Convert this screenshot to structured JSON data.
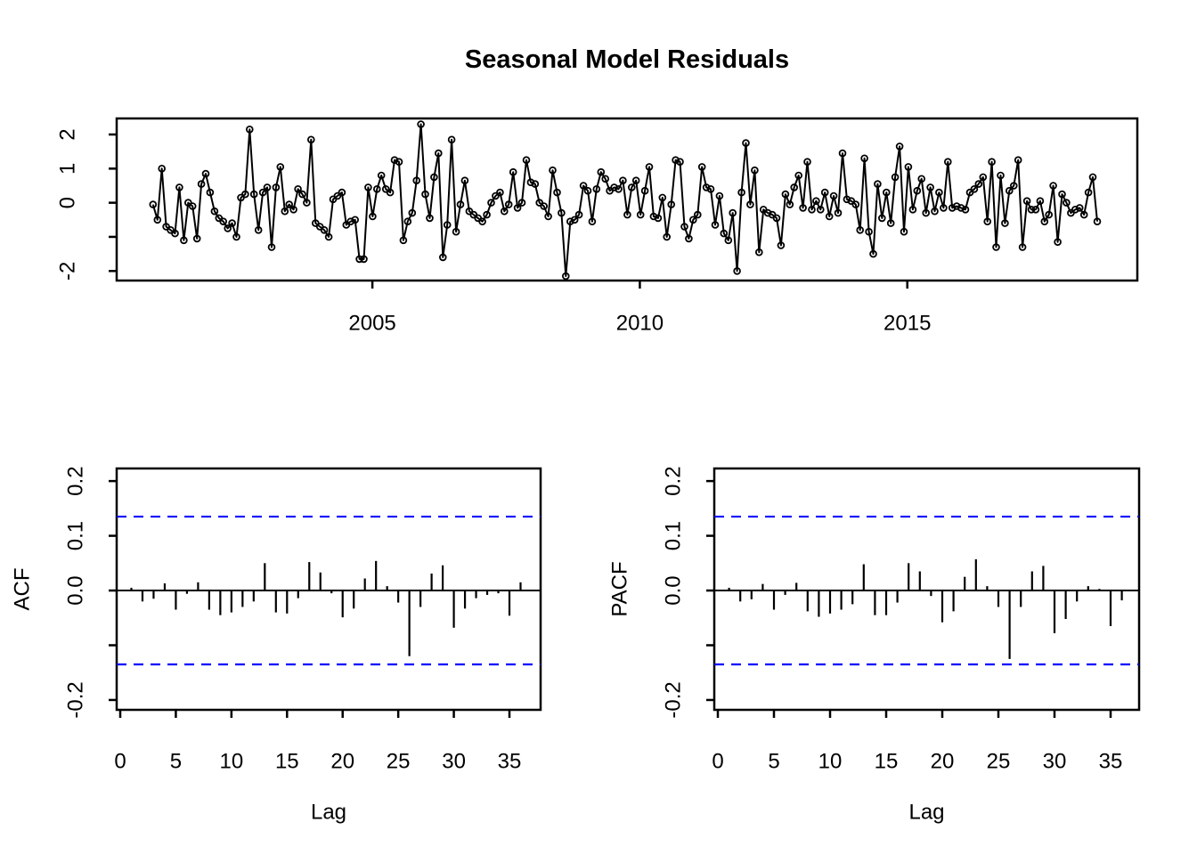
{
  "colors": {
    "foreground": "#000000",
    "confidence_line": "#0000FF",
    "background": "#FFFFFF"
  },
  "chart_data": [
    {
      "id": "residuals",
      "type": "line",
      "panel": "top",
      "title": "Seasonal Model Residuals",
      "marker": "open-circle",
      "x_axis": {
        "ticks": [
          2005,
          2010,
          2015
        ],
        "tick_labels": [
          "2005",
          "2010",
          "2015"
        ],
        "lim": [
          2000.22,
          2019.3
        ]
      },
      "y_axis": {
        "ticks": [
          2,
          1,
          0,
          -1,
          -2
        ],
        "tick_labels": [
          "2",
          "1",
          "0",
          "",
          "-2"
        ],
        "lim": [
          -2.28,
          2.47
        ]
      },
      "x_start": 2000.9,
      "x_end": 2018.55,
      "values": [
        -0.05,
        -0.5,
        1.0,
        -0.7,
        -0.8,
        -0.9,
        0.45,
        -1.1,
        0.0,
        -0.1,
        -1.05,
        0.55,
        0.85,
        0.3,
        -0.25,
        -0.45,
        -0.55,
        -0.75,
        -0.6,
        -1.0,
        0.15,
        0.25,
        2.15,
        0.25,
        -0.8,
        0.3,
        0.45,
        -1.3,
        0.45,
        1.05,
        -0.25,
        -0.05,
        -0.2,
        0.4,
        0.25,
        0.0,
        1.85,
        -0.6,
        -0.7,
        -0.8,
        -1.0,
        0.1,
        0.2,
        0.3,
        -0.65,
        -0.55,
        -0.5,
        -1.65,
        -1.65,
        0.45,
        -0.4,
        0.4,
        0.8,
        0.4,
        0.3,
        1.25,
        1.2,
        -1.1,
        -0.55,
        -0.3,
        0.65,
        2.3,
        0.25,
        -0.45,
        0.75,
        1.45,
        -1.6,
        -0.65,
        1.85,
        -0.85,
        -0.05,
        0.65,
        -0.25,
        -0.35,
        -0.45,
        -0.55,
        -0.35,
        0.0,
        0.2,
        0.3,
        -0.25,
        -0.05,
        0.9,
        -0.15,
        0.0,
        1.25,
        0.6,
        0.55,
        0.0,
        -0.1,
        -0.4,
        0.95,
        0.3,
        -0.3,
        -2.15,
        -0.55,
        -0.5,
        -0.35,
        0.5,
        0.35,
        -0.55,
        0.4,
        0.9,
        0.7,
        0.35,
        0.45,
        0.4,
        0.65,
        -0.35,
        0.45,
        0.65,
        -0.35,
        0.35,
        1.05,
        -0.4,
        -0.45,
        0.15,
        -1.0,
        -0.05,
        1.25,
        1.2,
        -0.7,
        -1.05,
        -0.5,
        -0.35,
        1.05,
        0.45,
        0.4,
        -0.65,
        0.2,
        -0.9,
        -1.1,
        -0.3,
        -2.0,
        0.3,
        1.75,
        -0.05,
        0.95,
        -1.45,
        -0.2,
        -0.3,
        -0.35,
        -0.45,
        -1.25,
        0.25,
        -0.05,
        0.45,
        0.8,
        -0.15,
        1.2,
        -0.2,
        0.05,
        -0.2,
        0.3,
        -0.4,
        0.2,
        -0.3,
        1.45,
        0.1,
        0.05,
        -0.05,
        -0.8,
        1.3,
        -0.85,
        -1.5,
        0.55,
        -0.45,
        0.3,
        -0.6,
        0.75,
        1.65,
        -0.85,
        1.05,
        -0.2,
        0.35,
        0.7,
        -0.3,
        0.45,
        -0.25,
        0.3,
        -0.15,
        1.2,
        -0.15,
        -0.1,
        -0.15,
        -0.2,
        0.3,
        0.4,
        0.55,
        0.75,
        -0.55,
        1.2,
        -1.3,
        0.8,
        -0.6,
        0.35,
        0.5,
        1.25,
        -1.3,
        0.05,
        -0.2,
        -0.2,
        0.05,
        -0.55,
        -0.35,
        0.5,
        -1.15,
        0.25,
        0.0,
        -0.3,
        -0.2,
        -0.15,
        -0.35,
        0.3,
        0.75,
        -0.55
      ]
    },
    {
      "id": "acf",
      "type": "bar",
      "panel": "bottom-left",
      "ylabel": "ACF",
      "xlabel": "Lag",
      "first_lag": 1,
      "confidence": 0.135,
      "x_axis": {
        "ticks": [
          0,
          5,
          10,
          15,
          20,
          25,
          30,
          35
        ],
        "tick_labels": [
          "0",
          "5",
          "10",
          "15",
          "20",
          "25",
          "30",
          "35"
        ],
        "lim": [
          -0.32,
          37.8
        ]
      },
      "y_axis": {
        "ticks": [
          0.2,
          0.1,
          0.0,
          -0.1,
          -0.2
        ],
        "tick_labels": [
          "0.2",
          "0.1",
          "0.0",
          "",
          "-0.2"
        ],
        "lim": [
          -0.218,
          0.223
        ]
      },
      "values": [
        0.005,
        -0.02,
        -0.015,
        0.013,
        -0.035,
        -0.006,
        0.015,
        -0.035,
        -0.045,
        -0.04,
        -0.03,
        -0.02,
        0.05,
        -0.04,
        -0.042,
        -0.014,
        0.052,
        0.033,
        -0.005,
        -0.049,
        -0.033,
        0.022,
        0.054,
        0.008,
        -0.022,
        -0.12,
        -0.03,
        0.031,
        0.046,
        -0.068,
        -0.033,
        -0.014,
        -0.008,
        -0.005,
        -0.046,
        0.015
      ]
    },
    {
      "id": "pacf",
      "type": "bar",
      "panel": "bottom-right",
      "ylabel": "PACF",
      "xlabel": "Lag",
      "first_lag": 1,
      "confidence": 0.135,
      "x_axis": {
        "ticks": [
          0,
          5,
          10,
          15,
          20,
          25,
          30,
          35
        ],
        "tick_labels": [
          "0",
          "5",
          "10",
          "15",
          "20",
          "25",
          "30",
          "35"
        ],
        "lim": [
          -0.32,
          37.9
        ]
      },
      "y_axis": {
        "ticks": [
          0.2,
          0.1,
          0.0,
          -0.1,
          -0.2
        ],
        "tick_labels": [
          "0.2",
          "0.1",
          "0.0",
          "",
          "-0.2"
        ],
        "lim": [
          -0.218,
          0.223
        ]
      },
      "values": [
        0.005,
        -0.02,
        -0.016,
        0.012,
        -0.035,
        -0.008,
        0.014,
        -0.038,
        -0.048,
        -0.042,
        -0.035,
        -0.025,
        0.048,
        -0.045,
        -0.045,
        -0.022,
        0.05,
        0.035,
        -0.01,
        -0.058,
        -0.038,
        0.025,
        0.057,
        0.008,
        -0.03,
        -0.125,
        -0.03,
        0.035,
        0.045,
        -0.078,
        -0.052,
        -0.02,
        0.008,
        0.003,
        -0.065,
        -0.018
      ]
    }
  ]
}
